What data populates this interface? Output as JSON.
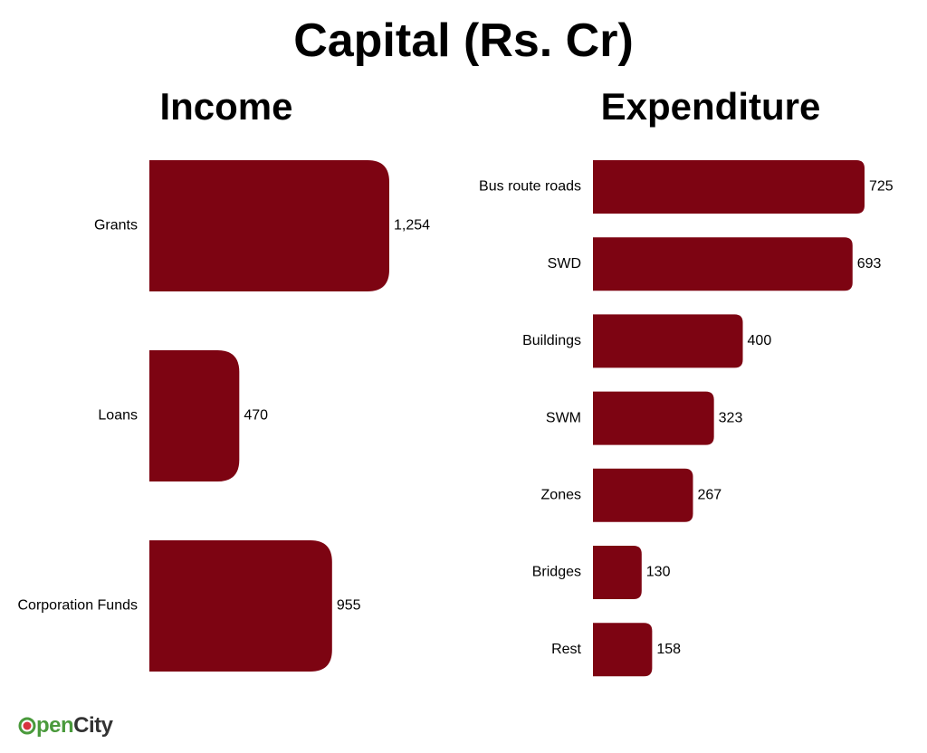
{
  "title": "Capital (Rs. Cr)",
  "bar_color": "#7d0412",
  "logo": {
    "icon": "opencity-logo-icon",
    "text_open": "pen",
    "text_city": "City"
  },
  "chart_data": [
    {
      "type": "bar",
      "orientation": "horizontal",
      "title": "Income",
      "categories": [
        "Grants",
        "Loans",
        "Corporation Funds"
      ],
      "values": [
        1254,
        470,
        955
      ],
      "value_labels": [
        "1,254",
        "470",
        "955"
      ]
    },
    {
      "type": "bar",
      "orientation": "horizontal",
      "title": "Expenditure",
      "categories": [
        "Bus route roads",
        "SWD",
        "Buildings",
        "SWM",
        "Zones",
        "Bridges",
        "Rest"
      ],
      "values": [
        725,
        693,
        400,
        323,
        267,
        130,
        158
      ],
      "value_labels": [
        "725",
        "693",
        "400",
        "323",
        "267",
        "130",
        "158"
      ]
    }
  ]
}
